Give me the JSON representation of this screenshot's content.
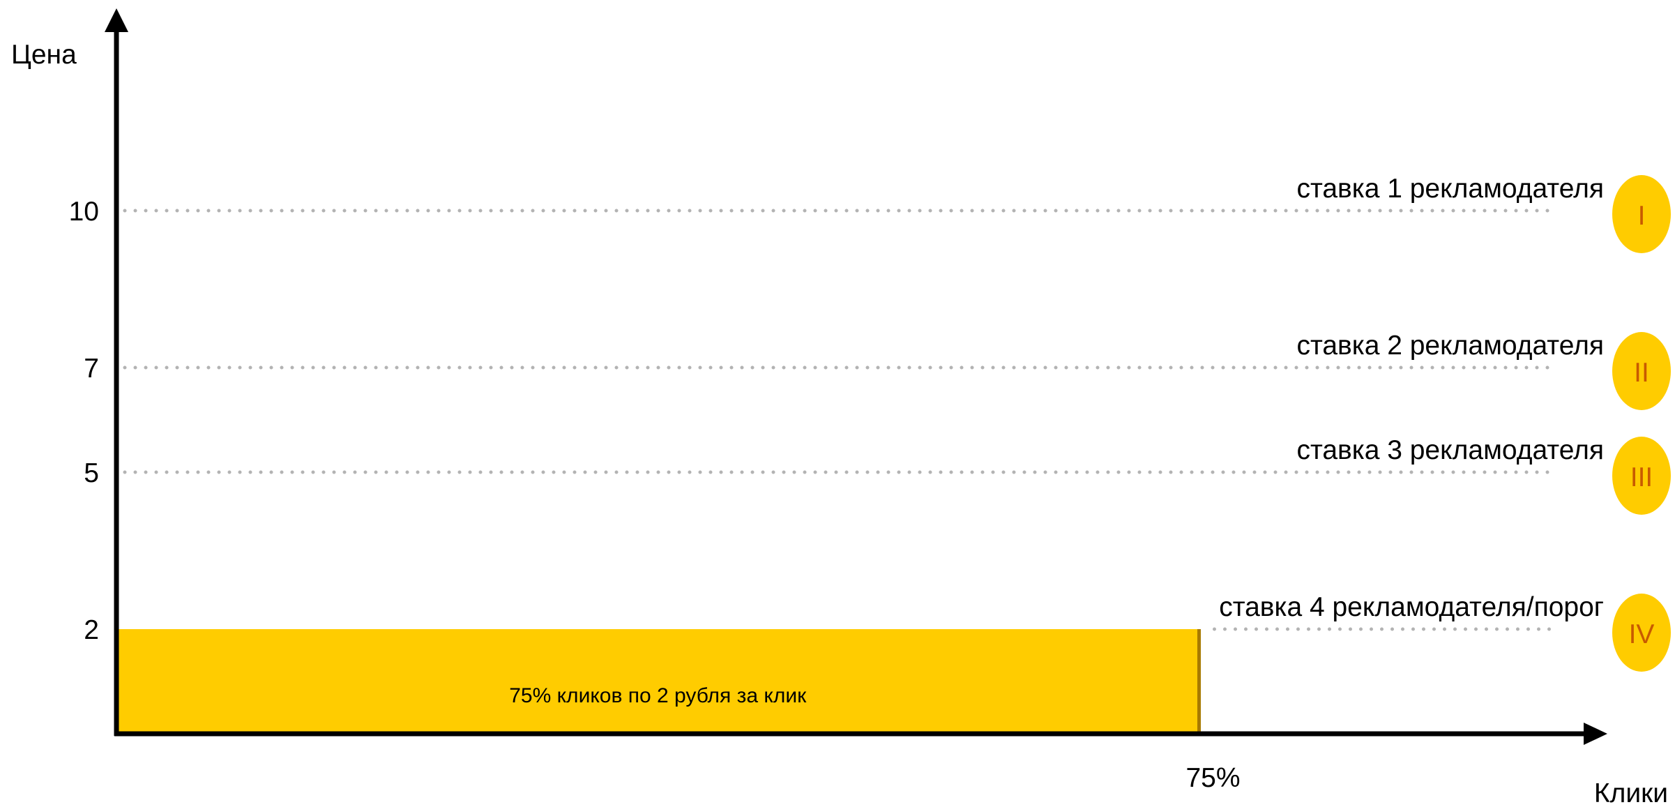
{
  "chart_data": {
    "type": "bar",
    "xlabel": "Клики",
    "ylabel": "Цена",
    "ylim": [
      0,
      13.5
    ],
    "xlim": [
      0,
      100
    ],
    "y_ticks": [
      {
        "value": 10,
        "label": "10"
      },
      {
        "value": 7,
        "label": "7"
      },
      {
        "value": 5,
        "label": "5"
      },
      {
        "value": 2,
        "label": "2"
      }
    ],
    "x_ticks": [
      {
        "value": 75,
        "label": "75%"
      }
    ],
    "bars": [
      {
        "x_start": 0,
        "x_end": 75,
        "value": 2,
        "label": "75% кликов по 2 рубля за клик",
        "color": "#FFCC00"
      }
    ],
    "bid_lines": [
      {
        "value": 10,
        "label": "ставка 1 рекламодателя",
        "badge": "I",
        "x_start": 0
      },
      {
        "value": 7,
        "label": "ставка 2 рекламодателя",
        "badge": "II",
        "x_start": 0
      },
      {
        "value": 5,
        "label": "ставка 3 рекламодателя",
        "badge": "III",
        "x_start": 0
      },
      {
        "value": 2,
        "label": "ставка 4 рекламодателя/порог",
        "badge": "IV",
        "x_start": 75
      }
    ],
    "grid": false,
    "colors": {
      "bar": "#FFCC00",
      "bar_edge": "#A87A00",
      "badge": "#FFCC00",
      "badge_text": "#C85A00",
      "guide": "#B3B3B3",
      "axis": "#000000"
    }
  }
}
